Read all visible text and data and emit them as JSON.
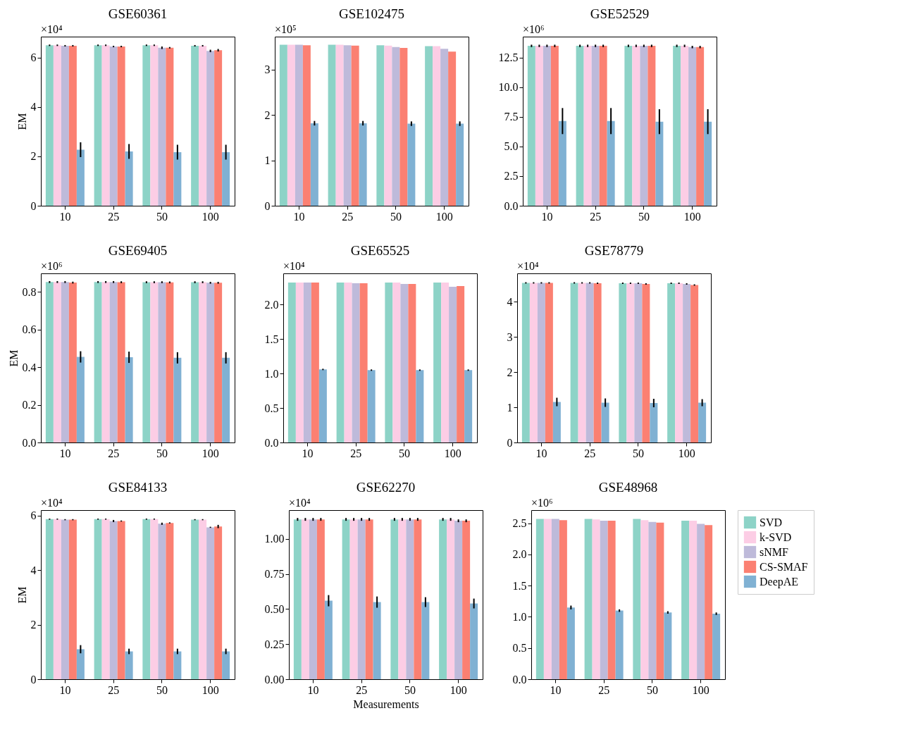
{
  "chart_data": [
    {
      "type": "bar",
      "title": "GSE60361",
      "ylabel": "EM",
      "annotations": [
        "×10⁴"
      ],
      "categories": [
        "10",
        "25",
        "50",
        "100"
      ],
      "ylim": [
        0,
        6.85
      ],
      "yticks": [
        0,
        2,
        4,
        6
      ],
      "grid": false,
      "series": [
        {
          "color": "#8dd3c7",
          "values": [
            6.5,
            6.5,
            6.5,
            6.48
          ],
          "errors": [
            0.03,
            0.03,
            0.03,
            0.03
          ]
        },
        {
          "color": "#fccde5",
          "values": [
            6.5,
            6.5,
            6.5,
            6.48
          ],
          "errors": [
            0.03,
            0.03,
            0.03,
            0.03
          ]
        },
        {
          "color": "#bebada",
          "values": [
            6.48,
            6.45,
            6.4,
            6.27
          ],
          "errors": [
            0.03,
            0.03,
            0.05,
            0.05
          ]
        },
        {
          "color": "#fb8072",
          "values": [
            6.48,
            6.45,
            6.4,
            6.3
          ],
          "errors": [
            0.03,
            0.03,
            0.03,
            0.05
          ]
        },
        {
          "color": "#80b1d3",
          "values": [
            2.27,
            2.2,
            2.17,
            2.17
          ],
          "errors": [
            0.3,
            0.3,
            0.3,
            0.3
          ]
        }
      ]
    },
    {
      "type": "bar",
      "title": "GSE102475",
      "annotations": [
        "×10⁵"
      ],
      "categories": [
        "10",
        "25",
        "50",
        "100"
      ],
      "ylim": [
        0,
        3.73
      ],
      "yticks": [
        {
          "value": 0,
          "label": "0"
        },
        {
          "value": 1,
          "label": "1"
        },
        {
          "value": 2,
          "label": "2"
        },
        {
          "value": 3,
          "label": "3"
        }
      ],
      "grid": false,
      "series": [
        {
          "color": "#8dd3c7",
          "values": [
            3.55,
            3.55,
            3.54,
            3.52
          ]
        },
        {
          "color": "#fccde5",
          "values": [
            3.55,
            3.55,
            3.53,
            3.52
          ]
        },
        {
          "color": "#bebada",
          "values": [
            3.55,
            3.54,
            3.5,
            3.46
          ]
        },
        {
          "color": "#fb8072",
          "values": [
            3.54,
            3.53,
            3.48,
            3.4
          ]
        },
        {
          "color": "#80b1d3",
          "values": [
            1.82,
            1.82,
            1.81,
            1.81
          ],
          "errors": [
            0.05,
            0.05,
            0.05,
            0.05
          ]
        }
      ]
    },
    {
      "type": "bar",
      "title": "GSE52529",
      "annotations": [
        "×10⁶"
      ],
      "categories": [
        "10",
        "25",
        "50",
        "100"
      ],
      "ylim": [
        0,
        14.28
      ],
      "yticks": [
        {
          "value": 0,
          "label": "0.0"
        },
        2.5,
        {
          "value": 5,
          "label": "5.0"
        },
        7.5,
        {
          "value": 10,
          "label": "10.0"
        },
        12.5
      ],
      "grid": false,
      "series": [
        {
          "color": "#8dd3c7",
          "values": [
            13.5,
            13.5,
            13.5,
            13.5
          ],
          "errors": [
            0.1,
            0.1,
            0.1,
            0.1
          ]
        },
        {
          "color": "#fccde5",
          "values": [
            13.5,
            13.5,
            13.5,
            13.5
          ],
          "errors": [
            0.1,
            0.1,
            0.1,
            0.1
          ]
        },
        {
          "color": "#bebada",
          "values": [
            13.5,
            13.5,
            13.5,
            13.4
          ],
          "errors": [
            0.1,
            0.1,
            0.1,
            0.1
          ]
        },
        {
          "color": "#fb8072",
          "values": [
            13.5,
            13.5,
            13.5,
            13.4
          ],
          "errors": [
            0.1,
            0.1,
            0.1,
            0.1
          ]
        },
        {
          "color": "#80b1d3",
          "values": [
            7.15,
            7.15,
            7.1,
            7.1
          ],
          "errors": [
            1.1,
            1.1,
            1.05,
            1.05
          ]
        }
      ]
    },
    {
      "type": "bar",
      "title": "GSE69405",
      "ylabel": "EM",
      "annotations": [
        "×10⁶"
      ],
      "categories": [
        "10",
        "25",
        "50",
        "100"
      ],
      "ylim": [
        0,
        0.899
      ],
      "yticks": [
        {
          "value": 0,
          "label": "0.0"
        },
        0.2,
        0.4,
        0.6,
        0.8
      ],
      "grid": false,
      "series": [
        {
          "color": "#8dd3c7",
          "values": [
            0.853,
            0.853,
            0.852,
            0.852
          ],
          "errors": [
            0.005,
            0.005,
            0.005,
            0.005
          ]
        },
        {
          "color": "#fccde5",
          "values": [
            0.853,
            0.853,
            0.852,
            0.852
          ],
          "errors": [
            0.005,
            0.005,
            0.005,
            0.005
          ]
        },
        {
          "color": "#bebada",
          "values": [
            0.853,
            0.853,
            0.852,
            0.849
          ],
          "errors": [
            0.005,
            0.005,
            0.005,
            0.005
          ]
        },
        {
          "color": "#fb8072",
          "values": [
            0.85,
            0.852,
            0.851,
            0.849
          ],
          "errors": [
            0.005,
            0.005,
            0.005,
            0.005
          ]
        },
        {
          "color": "#80b1d3",
          "values": [
            0.455,
            0.453,
            0.45,
            0.45
          ],
          "errors": [
            0.03,
            0.03,
            0.03,
            0.03
          ]
        }
      ]
    },
    {
      "type": "bar",
      "title": "GSE65525",
      "annotations": [
        "×10⁴"
      ],
      "categories": [
        "10",
        "25",
        "50",
        "100"
      ],
      "ylim": [
        0,
        2.454
      ],
      "yticks": [
        {
          "value": 0,
          "label": "0.0"
        },
        0.5,
        {
          "value": 1,
          "label": "1.0"
        },
        1.5,
        {
          "value": 2,
          "label": "2.0"
        }
      ],
      "grid": false,
      "series": [
        {
          "color": "#8dd3c7",
          "values": [
            2.32,
            2.32,
            2.32,
            2.32
          ]
        },
        {
          "color": "#fccde5",
          "values": [
            2.32,
            2.32,
            2.32,
            2.32
          ]
        },
        {
          "color": "#bebada",
          "values": [
            2.32,
            2.31,
            2.3,
            2.26
          ]
        },
        {
          "color": "#fb8072",
          "values": [
            2.32,
            2.31,
            2.3,
            2.27
          ]
        },
        {
          "color": "#80b1d3",
          "values": [
            1.06,
            1.05,
            1.05,
            1.05
          ],
          "errors": [
            0.01,
            0.01,
            0.01,
            0.01
          ]
        }
      ]
    },
    {
      "type": "bar",
      "title": "GSE78779",
      "annotations": [
        "×10⁴"
      ],
      "categories": [
        "10",
        "25",
        "50",
        "100"
      ],
      "ylim": [
        0,
        4.8
      ],
      "yticks": [
        0,
        1,
        2,
        3,
        4
      ],
      "grid": false,
      "series": [
        {
          "color": "#8dd3c7",
          "values": [
            4.53,
            4.53,
            4.52,
            4.52
          ],
          "errors": [
            0.02,
            0.02,
            0.02,
            0.02
          ]
        },
        {
          "color": "#fccde5",
          "values": [
            4.53,
            4.53,
            4.52,
            4.52
          ],
          "errors": [
            0.02,
            0.02,
            0.02,
            0.02
          ]
        },
        {
          "color": "#bebada",
          "values": [
            4.53,
            4.53,
            4.52,
            4.5
          ],
          "errors": [
            0.02,
            0.02,
            0.02,
            0.02
          ]
        },
        {
          "color": "#fb8072",
          "values": [
            4.53,
            4.52,
            4.5,
            4.47
          ],
          "errors": [
            0.02,
            0.02,
            0.02,
            0.02
          ]
        },
        {
          "color": "#80b1d3",
          "values": [
            1.15,
            1.13,
            1.12,
            1.13
          ],
          "errors": [
            0.12,
            0.12,
            0.12,
            0.1
          ]
        }
      ]
    },
    {
      "type": "bar",
      "title": "GSE84133",
      "ylabel": "EM",
      "annotations": [
        "×10⁴"
      ],
      "categories": [
        "10",
        "25",
        "50",
        "100"
      ],
      "ylim": [
        0,
        6.2
      ],
      "yticks": [
        0,
        2,
        4,
        6
      ],
      "grid": false,
      "series": [
        {
          "color": "#8dd3c7",
          "values": [
            5.87,
            5.87,
            5.87,
            5.85
          ],
          "errors": [
            0.02,
            0.02,
            0.02,
            0.02
          ]
        },
        {
          "color": "#fccde5",
          "values": [
            5.87,
            5.87,
            5.87,
            5.85
          ],
          "errors": [
            0.02,
            0.02,
            0.02,
            0.02
          ]
        },
        {
          "color": "#bebada",
          "values": [
            5.85,
            5.8,
            5.7,
            5.57
          ],
          "errors": [
            0.02,
            0.04,
            0.04,
            0.02
          ]
        },
        {
          "color": "#fb8072",
          "values": [
            5.85,
            5.8,
            5.73,
            5.6
          ],
          "errors": [
            0.02,
            0.02,
            0.02,
            0.06
          ]
        },
        {
          "color": "#80b1d3",
          "values": [
            1.1,
            1.02,
            1.02,
            1.02
          ],
          "errors": [
            0.15,
            0.1,
            0.1,
            0.1
          ]
        }
      ]
    },
    {
      "type": "bar",
      "title": "GSE62270",
      "xlabel": "Measurements",
      "annotations": [
        "×10⁴"
      ],
      "categories": [
        "10",
        "25",
        "50",
        "100"
      ],
      "ylim": [
        0,
        1.206
      ],
      "yticks": [
        {
          "value": 0,
          "label": "0.00"
        },
        0.25,
        {
          "value": 0.5,
          "label": "0.50"
        },
        0.75,
        {
          "value": 1,
          "label": "1.00"
        }
      ],
      "grid": false,
      "series": [
        {
          "color": "#8dd3c7",
          "values": [
            1.14,
            1.14,
            1.14,
            1.14
          ],
          "errors": [
            0.01,
            0.01,
            0.01,
            0.01
          ]
        },
        {
          "color": "#fccde5",
          "values": [
            1.14,
            1.14,
            1.14,
            1.14
          ],
          "errors": [
            0.01,
            0.01,
            0.01,
            0.01
          ]
        },
        {
          "color": "#bebada",
          "values": [
            1.14,
            1.14,
            1.14,
            1.13
          ],
          "errors": [
            0.01,
            0.01,
            0.01,
            0.01
          ]
        },
        {
          "color": "#fb8072",
          "values": [
            1.14,
            1.14,
            1.14,
            1.13
          ],
          "errors": [
            0.01,
            0.01,
            0.01,
            0.01
          ]
        },
        {
          "color": "#80b1d3",
          "values": [
            0.56,
            0.55,
            0.55,
            0.54
          ],
          "errors": [
            0.04,
            0.04,
            0.035,
            0.035
          ]
        }
      ]
    },
    {
      "type": "bar",
      "title": "GSE48968",
      "annotations": [
        "×10⁶"
      ],
      "categories": [
        "10",
        "25",
        "50",
        "100"
      ],
      "ylim": [
        0,
        2.71
      ],
      "yticks": [
        {
          "value": 0,
          "label": "0.0"
        },
        0.5,
        {
          "value": 1,
          "label": "1.0"
        },
        1.5,
        {
          "value": 2,
          "label": "2.0"
        },
        2.5
      ],
      "grid": false,
      "legend": "right",
      "series": [
        {
          "name": "SVD",
          "color": "#8dd3c7",
          "values": [
            2.57,
            2.57,
            2.57,
            2.54
          ]
        },
        {
          "name": "k-SVD",
          "color": "#fccde5",
          "values": [
            2.57,
            2.56,
            2.55,
            2.54
          ]
        },
        {
          "name": "sNMF",
          "color": "#bebada",
          "values": [
            2.57,
            2.54,
            2.52,
            2.49
          ]
        },
        {
          "name": "CS-SMAF",
          "color": "#fb8072",
          "values": [
            2.55,
            2.54,
            2.51,
            2.47
          ]
        },
        {
          "name": "DeepAE",
          "color": "#80b1d3",
          "values": [
            1.15,
            1.1,
            1.07,
            1.05
          ],
          "errors": [
            0.03,
            0.02,
            0.02,
            0.02
          ]
        }
      ]
    }
  ]
}
